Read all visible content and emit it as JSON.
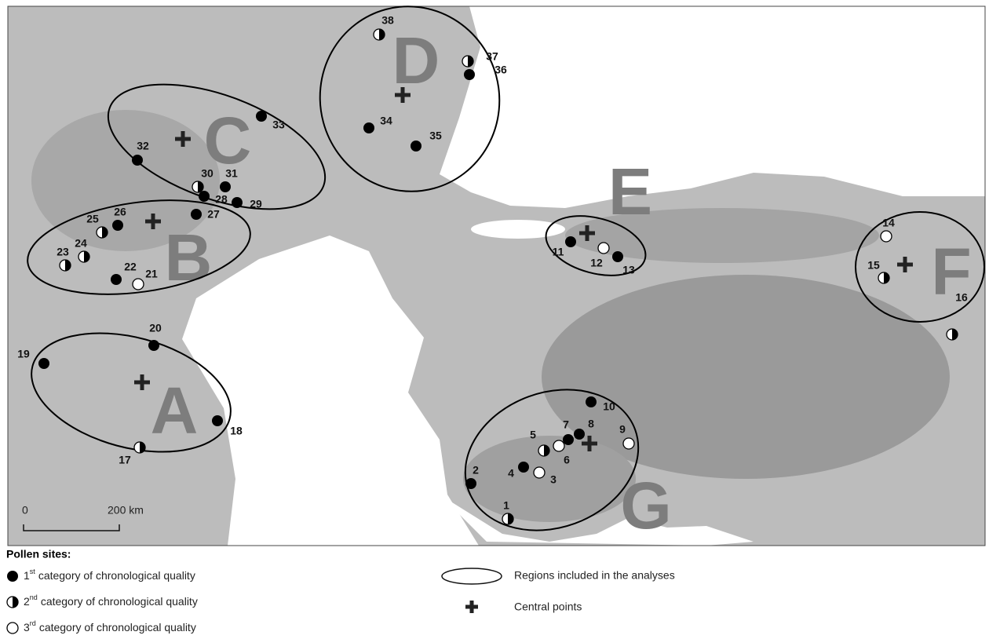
{
  "map": {
    "regions": [
      {
        "letter": "A"
      },
      {
        "letter": "B"
      },
      {
        "letter": "C"
      },
      {
        "letter": "D"
      },
      {
        "letter": "E"
      },
      {
        "letter": "F"
      },
      {
        "letter": "G"
      }
    ],
    "sites": [
      {
        "label": "1",
        "category": 2
      },
      {
        "label": "2",
        "category": 1
      },
      {
        "label": "3",
        "category": 3
      },
      {
        "label": "4",
        "category": 1
      },
      {
        "label": "5",
        "category": 2
      },
      {
        "label": "6",
        "category": 3
      },
      {
        "label": "7",
        "category": 1
      },
      {
        "label": "8",
        "category": 1
      },
      {
        "label": "9",
        "category": 3
      },
      {
        "label": "10",
        "category": 1
      },
      {
        "label": "11",
        "category": 1
      },
      {
        "label": "12",
        "category": 3
      },
      {
        "label": "13",
        "category": 1
      },
      {
        "label": "14",
        "category": 3
      },
      {
        "label": "15",
        "category": 2
      },
      {
        "label": "16",
        "category": 2
      },
      {
        "label": "17",
        "category": 2
      },
      {
        "label": "18",
        "category": 1
      },
      {
        "label": "19",
        "category": 1
      },
      {
        "label": "20",
        "category": 1
      },
      {
        "label": "21",
        "category": 3
      },
      {
        "label": "22",
        "category": 1
      },
      {
        "label": "23",
        "category": 2
      },
      {
        "label": "24",
        "category": 2
      },
      {
        "label": "25",
        "category": 2
      },
      {
        "label": "26",
        "category": 1
      },
      {
        "label": "27",
        "category": 1
      },
      {
        "label": "28",
        "category": 1
      },
      {
        "label": "29",
        "category": 1
      },
      {
        "label": "30",
        "category": 2
      },
      {
        "label": "31",
        "category": 1
      },
      {
        "label": "32",
        "category": 1
      },
      {
        "label": "33",
        "category": 1
      },
      {
        "label": "34",
        "category": 1
      },
      {
        "label": "35",
        "category": 1
      },
      {
        "label": "36",
        "category": 1
      },
      {
        "label": "37",
        "category": 2
      },
      {
        "label": "38",
        "category": 2
      }
    ],
    "scale_bar": {
      "start": "0",
      "end": "200 km"
    }
  },
  "legend": {
    "title": "Pollen sites:",
    "categories": [
      {
        "number": "1",
        "suffix": "st",
        "text": "category of chronological quality"
      },
      {
        "number": "2",
        "suffix": "nd",
        "text": "category of chronological quality"
      },
      {
        "number": "3",
        "suffix": "rd",
        "text": "category of chronological quality"
      }
    ],
    "regions_text": "Regions included in the analyses",
    "central_points_text": "Central points"
  }
}
